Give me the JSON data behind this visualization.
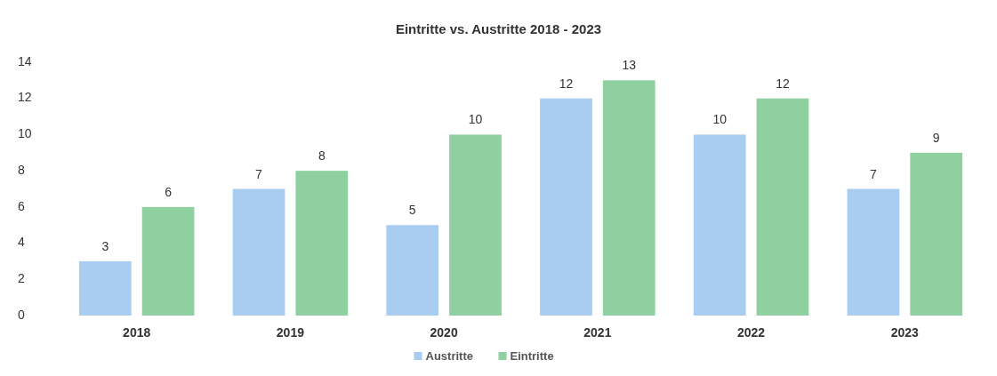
{
  "chart_data": {
    "type": "bar",
    "title": "Eintritte vs. Austritte 2018 - 2023",
    "categories": [
      "2018",
      "2019",
      "2020",
      "2021",
      "2022",
      "2023"
    ],
    "series": [
      {
        "name": "Austritte",
        "color": "#a9cdf0",
        "values": [
          3,
          7,
          5,
          12,
          10,
          7
        ]
      },
      {
        "name": "Eintritte",
        "color": "#8fd0a0",
        "values": [
          6,
          8,
          10,
          13,
          12,
          9
        ]
      }
    ],
    "ylim": [
      0,
      14
    ],
    "yticks": [
      0,
      2,
      4,
      6,
      8,
      10,
      12,
      14
    ],
    "grid": false,
    "legend": "bottom",
    "data_labels": true
  }
}
